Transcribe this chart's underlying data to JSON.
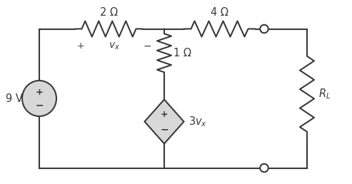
{
  "bg_color": "#ffffff",
  "wire_color": "#3a3a3a",
  "lw": 1.5,
  "source_fc": "#d8d8d8",
  "diamond_fc": "#d8d8d8",
  "labels": {
    "R1": "2 Ω",
    "R2": "4 Ω",
    "R3": "1 Ω",
    "Vs": "9 V"
  },
  "fontsize": 10.5,
  "fig_w": 4.93,
  "fig_h": 2.58,
  "dpi": 100,
  "xlim": [
    0,
    9.86
  ],
  "ylim": [
    0,
    5.16
  ]
}
